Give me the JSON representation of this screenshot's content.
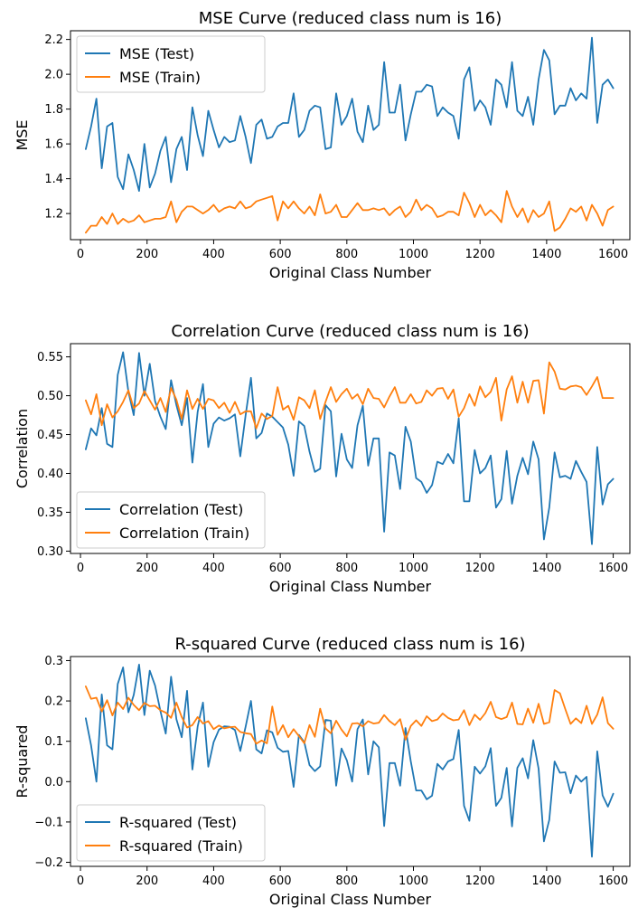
{
  "colors": {
    "test": "#1f77b4",
    "train": "#ff7f0e"
  },
  "chart_data": [
    {
      "type": "line",
      "title": "MSE Curve (reduced class num is 16)",
      "xlabel": "Original Class Number",
      "ylabel": "MSE",
      "xlim": [
        -30,
        1650
      ],
      "ylim": [
        1.05,
        2.25
      ],
      "xticks": [
        0,
        200,
        400,
        600,
        800,
        1000,
        1200,
        1400,
        1600
      ],
      "yticks": [
        1.2,
        1.4,
        1.6,
        1.8,
        2.0,
        2.2
      ],
      "ytick_labels": [
        "1.2",
        "1.4",
        "1.6",
        "1.8",
        "2.0",
        "2.2"
      ],
      "legend": "upper-left",
      "grid": false,
      "x_start": 16,
      "x_step": 16,
      "series": [
        {
          "name": "MSE (Test)",
          "color": "test",
          "values": [
            1.57,
            1.7,
            1.86,
            1.46,
            1.7,
            1.72,
            1.41,
            1.34,
            1.54,
            1.45,
            1.33,
            1.6,
            1.35,
            1.43,
            1.56,
            1.64,
            1.38,
            1.57,
            1.64,
            1.45,
            1.81,
            1.65,
            1.53,
            1.79,
            1.68,
            1.58,
            1.64,
            1.61,
            1.62,
            1.76,
            1.64,
            1.49,
            1.71,
            1.74,
            1.63,
            1.64,
            1.7,
            1.72,
            1.72,
            1.89,
            1.64,
            1.68,
            1.79,
            1.82,
            1.81,
            1.57,
            1.58,
            1.89,
            1.71,
            1.76,
            1.86,
            1.67,
            1.61,
            1.82,
            1.68,
            1.71,
            2.07,
            1.78,
            1.78,
            1.94,
            1.62,
            1.77,
            1.9,
            1.9,
            1.94,
            1.93,
            1.76,
            1.81,
            1.78,
            1.76,
            1.63,
            1.97,
            2.04,
            1.79,
            1.85,
            1.81,
            1.71,
            1.97,
            1.94,
            1.81,
            2.07,
            1.79,
            1.76,
            1.87,
            1.71,
            1.97,
            2.14,
            2.08,
            1.77,
            1.82,
            1.82,
            1.92,
            1.85,
            1.89,
            1.86,
            2.21,
            1.72,
            1.94,
            1.97,
            1.92
          ]
        },
        {
          "name": "MSE (Train)",
          "color": "train",
          "values": [
            1.09,
            1.13,
            1.13,
            1.18,
            1.14,
            1.2,
            1.14,
            1.17,
            1.15,
            1.16,
            1.19,
            1.15,
            1.16,
            1.17,
            1.17,
            1.18,
            1.27,
            1.15,
            1.21,
            1.24,
            1.24,
            1.22,
            1.2,
            1.22,
            1.25,
            1.21,
            1.23,
            1.24,
            1.23,
            1.27,
            1.23,
            1.24,
            1.27,
            1.28,
            1.29,
            1.3,
            1.16,
            1.27,
            1.23,
            1.27,
            1.23,
            1.2,
            1.24,
            1.19,
            1.31,
            1.2,
            1.21,
            1.25,
            1.18,
            1.18,
            1.22,
            1.26,
            1.22,
            1.22,
            1.23,
            1.22,
            1.23,
            1.19,
            1.22,
            1.24,
            1.18,
            1.21,
            1.28,
            1.22,
            1.25,
            1.23,
            1.18,
            1.19,
            1.21,
            1.21,
            1.19,
            1.32,
            1.26,
            1.18,
            1.25,
            1.19,
            1.22,
            1.19,
            1.15,
            1.33,
            1.24,
            1.18,
            1.23,
            1.15,
            1.22,
            1.18,
            1.2,
            1.27,
            1.1,
            1.12,
            1.17,
            1.23,
            1.21,
            1.24,
            1.16,
            1.25,
            1.2,
            1.13,
            1.22,
            1.24
          ]
        }
      ]
    },
    {
      "type": "line",
      "title": "Correlation Curve (reduced class num is 16)",
      "xlabel": "Original Class Number",
      "ylabel": "Correlation",
      "xlim": [
        -30,
        1650
      ],
      "ylim": [
        0.297,
        0.567
      ],
      "xticks": [
        0,
        200,
        400,
        600,
        800,
        1000,
        1200,
        1400,
        1600
      ],
      "yticks": [
        0.3,
        0.35,
        0.4,
        0.45,
        0.5,
        0.55
      ],
      "ytick_labels": [
        "0.30",
        "0.35",
        "0.40",
        "0.45",
        "0.50",
        "0.55"
      ],
      "legend": "lower-left",
      "grid": false,
      "x_start": 16,
      "x_step": 16,
      "series": [
        {
          "name": "Correlation (Test)",
          "color": "test",
          "values": [
            0.431,
            0.458,
            0.449,
            0.484,
            0.438,
            0.434,
            0.527,
            0.556,
            0.505,
            0.475,
            0.555,
            0.5,
            0.541,
            0.493,
            0.473,
            0.457,
            0.52,
            0.488,
            0.462,
            0.497,
            0.414,
            0.479,
            0.515,
            0.434,
            0.464,
            0.472,
            0.468,
            0.471,
            0.476,
            0.422,
            0.475,
            0.523,
            0.445,
            0.452,
            0.477,
            0.473,
            0.466,
            0.459,
            0.437,
            0.397,
            0.467,
            0.461,
            0.428,
            0.402,
            0.406,
            0.488,
            0.48,
            0.396,
            0.451,
            0.418,
            0.407,
            0.462,
            0.487,
            0.41,
            0.445,
            0.445,
            0.325,
            0.427,
            0.423,
            0.38,
            0.46,
            0.441,
            0.394,
            0.389,
            0.375,
            0.385,
            0.415,
            0.412,
            0.425,
            0.413,
            0.471,
            0.364,
            0.364,
            0.43,
            0.4,
            0.407,
            0.423,
            0.356,
            0.367,
            0.429,
            0.361,
            0.397,
            0.42,
            0.399,
            0.441,
            0.418,
            0.315,
            0.356,
            0.427,
            0.395,
            0.397,
            0.393,
            0.416,
            0.402,
            0.389,
            0.309,
            0.434,
            0.36,
            0.386,
            0.393
          ]
        },
        {
          "name": "Correlation (Train)",
          "color": "train",
          "values": [
            0.494,
            0.476,
            0.502,
            0.462,
            0.489,
            0.472,
            0.48,
            0.492,
            0.507,
            0.484,
            0.49,
            0.506,
            0.494,
            0.482,
            0.497,
            0.479,
            0.51,
            0.495,
            0.47,
            0.507,
            0.483,
            0.496,
            0.483,
            0.496,
            0.494,
            0.484,
            0.491,
            0.478,
            0.492,
            0.476,
            0.48,
            0.48,
            0.458,
            0.477,
            0.47,
            0.474,
            0.511,
            0.482,
            0.487,
            0.469,
            0.498,
            0.494,
            0.484,
            0.507,
            0.47,
            0.492,
            0.511,
            0.492,
            0.502,
            0.509,
            0.496,
            0.502,
            0.489,
            0.509,
            0.497,
            0.496,
            0.485,
            0.499,
            0.511,
            0.491,
            0.491,
            0.502,
            0.49,
            0.492,
            0.507,
            0.5,
            0.509,
            0.51,
            0.496,
            0.508,
            0.473,
            0.484,
            0.502,
            0.487,
            0.512,
            0.498,
            0.505,
            0.523,
            0.468,
            0.508,
            0.525,
            0.491,
            0.518,
            0.491,
            0.519,
            0.52,
            0.477,
            0.543,
            0.531,
            0.509,
            0.508,
            0.512,
            0.513,
            0.511,
            0.501,
            0.512,
            0.524,
            0.497,
            0.497,
            0.497
          ]
        }
      ]
    },
    {
      "type": "line",
      "title": "R-squared Curve (reduced class num is 16)",
      "xlabel": "Original Class Number",
      "ylabel": "R-squared",
      "xlim": [
        -30,
        1650
      ],
      "ylim": [
        -0.21,
        0.31
      ],
      "xticks": [
        0,
        200,
        400,
        600,
        800,
        1000,
        1200,
        1400,
        1600
      ],
      "yticks": [
        -0.2,
        -0.1,
        0.0,
        0.1,
        0.2,
        0.3
      ],
      "ytick_labels": [
        "−0.2",
        "−0.1",
        "0.0",
        "0.1",
        "0.2",
        "0.3"
      ],
      "legend": "lower-left",
      "grid": false,
      "x_start": 16,
      "x_step": 16,
      "series": [
        {
          "name": "R-squared (Test)",
          "color": "test",
          "values": [
            0.157,
            0.09,
            0.0,
            0.216,
            0.09,
            0.08,
            0.242,
            0.283,
            0.172,
            0.215,
            0.29,
            0.165,
            0.275,
            0.238,
            0.175,
            0.119,
            0.26,
            0.155,
            0.11,
            0.225,
            0.03,
            0.136,
            0.196,
            0.037,
            0.098,
            0.129,
            0.137,
            0.136,
            0.128,
            0.076,
            0.136,
            0.2,
            0.08,
            0.07,
            0.127,
            0.122,
            0.084,
            0.074,
            0.076,
            -0.013,
            0.116,
            0.098,
            0.041,
            0.026,
            0.038,
            0.153,
            0.151,
            -0.01,
            0.082,
            0.053,
            0.0,
            0.13,
            0.154,
            0.018,
            0.1,
            0.085,
            -0.11,
            0.046,
            0.046,
            -0.01,
            0.133,
            0.05,
            -0.022,
            -0.022,
            -0.044,
            -0.035,
            0.044,
            0.03,
            0.05,
            0.056,
            0.128,
            -0.06,
            -0.097,
            0.037,
            0.02,
            0.038,
            0.083,
            -0.06,
            -0.04,
            0.034,
            -0.111,
            0.034,
            0.058,
            0.008,
            0.103,
            0.032,
            -0.148,
            -0.095,
            0.05,
            0.022,
            0.023,
            -0.029,
            0.015,
            0.0,
            0.012,
            -0.186,
            0.075,
            -0.034,
            -0.062,
            -0.03
          ]
        },
        {
          "name": "R-squared (Train)",
          "color": "train",
          "values": [
            0.236,
            0.205,
            0.208,
            0.174,
            0.202,
            0.164,
            0.196,
            0.18,
            0.208,
            0.19,
            0.177,
            0.195,
            0.187,
            0.188,
            0.177,
            0.171,
            0.158,
            0.196,
            0.16,
            0.134,
            0.14,
            0.16,
            0.144,
            0.15,
            0.13,
            0.139,
            0.132,
            0.135,
            0.136,
            0.123,
            0.12,
            0.118,
            0.094,
            0.102,
            0.095,
            0.186,
            0.116,
            0.14,
            0.11,
            0.13,
            0.113,
            0.095,
            0.14,
            0.111,
            0.181,
            0.132,
            0.12,
            0.151,
            0.129,
            0.112,
            0.144,
            0.145,
            0.137,
            0.15,
            0.144,
            0.146,
            0.165,
            0.15,
            0.14,
            0.155,
            0.104,
            0.138,
            0.152,
            0.138,
            0.162,
            0.15,
            0.154,
            0.169,
            0.158,
            0.152,
            0.154,
            0.177,
            0.14,
            0.166,
            0.153,
            0.17,
            0.198,
            0.16,
            0.155,
            0.16,
            0.196,
            0.143,
            0.142,
            0.181,
            0.146,
            0.193,
            0.143,
            0.147,
            0.227,
            0.219,
            0.18,
            0.143,
            0.157,
            0.145,
            0.188,
            0.143,
            0.166,
            0.209,
            0.145,
            0.131
          ]
        }
      ]
    }
  ]
}
